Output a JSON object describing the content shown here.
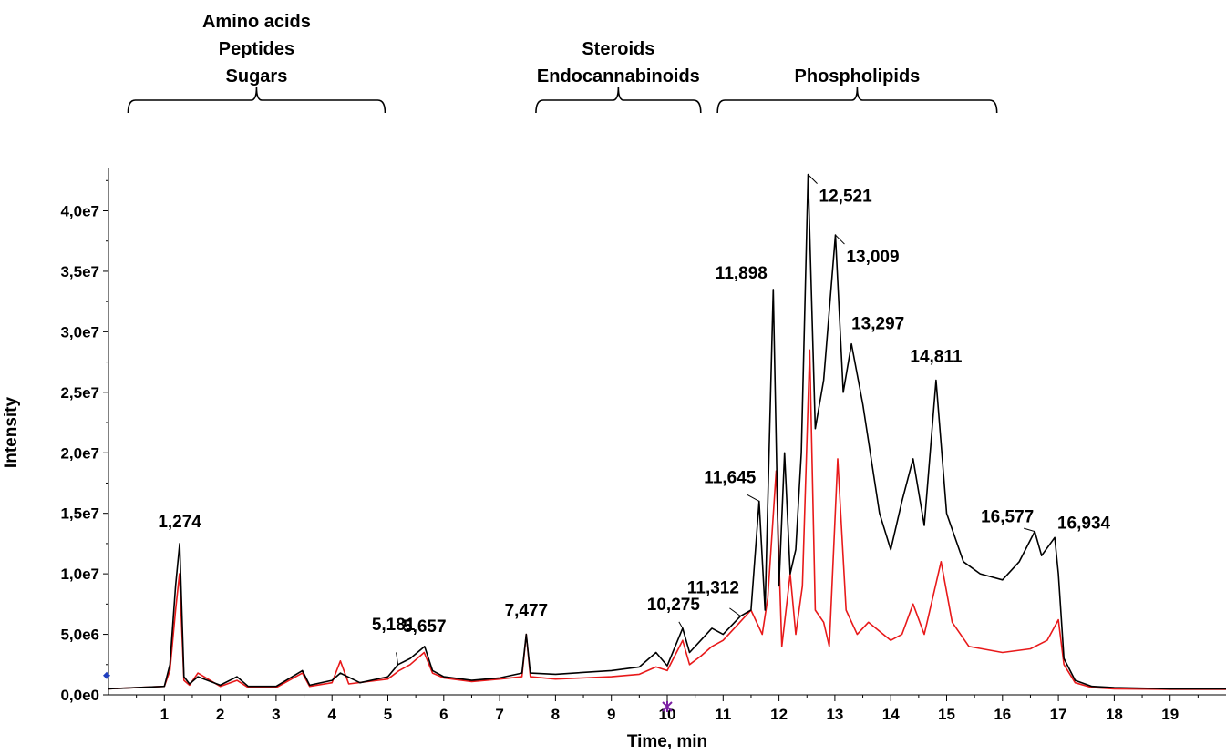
{
  "chart_data": {
    "type": "line",
    "xlabel": "Time, min",
    "ylabel": "Intensity",
    "xlim": [
      0,
      20
    ],
    "ylim": [
      0,
      43500000
    ],
    "x_ticks": [
      1,
      2,
      3,
      4,
      5,
      6,
      7,
      8,
      9,
      10,
      11,
      12,
      13,
      14,
      15,
      16,
      17,
      18,
      19
    ],
    "x_tick_labels": [
      "1",
      "2",
      "3",
      "4",
      "5",
      "6",
      "7",
      "8",
      "9",
      "10",
      "11",
      "12",
      "13",
      "14",
      "15",
      "16",
      "17",
      "18",
      "19"
    ],
    "y_ticks": [
      0,
      5000000,
      10000000,
      15000000,
      20000000,
      25000000,
      30000000,
      35000000,
      40000000
    ],
    "y_tick_labels": [
      "0,0e0",
      "5,0e6",
      "1,0e7",
      "1,5e7",
      "2,0e7",
      "2,5e7",
      "3,0e7",
      "3,5e7",
      "4,0e7"
    ],
    "grid": false,
    "colors": {
      "black_trace": "#000000",
      "red_trace": "#e8191a",
      "left_marker": "#1f3fbf",
      "bottom_marker": "#7a1fa2"
    },
    "series": [
      {
        "color": "#000000",
        "x": [
          0.0,
          1.0,
          1.1,
          1.2,
          1.274,
          1.35,
          1.45,
          1.6,
          2.0,
          2.3,
          2.5,
          3.0,
          3.47,
          3.6,
          4.0,
          4.15,
          4.5,
          5.0,
          5.181,
          5.4,
          5.657,
          5.8,
          6.0,
          6.5,
          7.0,
          7.4,
          7.477,
          7.55,
          8.0,
          9.0,
          9.5,
          9.8,
          10.0,
          10.275,
          10.4,
          10.6,
          10.8,
          11.0,
          11.312,
          11.5,
          11.645,
          11.75,
          11.898,
          12.0,
          12.1,
          12.2,
          12.3,
          12.4,
          12.521,
          12.65,
          12.8,
          13.009,
          13.15,
          13.297,
          13.5,
          13.8,
          14.0,
          14.2,
          14.4,
          14.6,
          14.811,
          15.0,
          15.3,
          15.6,
          16.0,
          16.3,
          16.577,
          16.7,
          16.934,
          17.0,
          17.1,
          17.3,
          17.6,
          18.0,
          19.0,
          20.0
        ],
        "y": [
          500000,
          700000,
          2500000,
          9000000,
          12500000,
          1500000,
          900000,
          1500000,
          800000,
          1500000,
          700000,
          700000,
          2000000,
          800000,
          1200000,
          1800000,
          1000000,
          1500000,
          2500000,
          3000000,
          4000000,
          2000000,
          1500000,
          1200000,
          1400000,
          1800000,
          5000000,
          1800000,
          1700000,
          2000000,
          2300000,
          3500000,
          2400000,
          5500000,
          3500000,
          4500000,
          5500000,
          5000000,
          6500000,
          7000000,
          16000000,
          7000000,
          33500000,
          9000000,
          20000000,
          10000000,
          12000000,
          20000000,
          43000000,
          22000000,
          26000000,
          38000000,
          25000000,
          29000000,
          24000000,
          15000000,
          12000000,
          16000000,
          19500000,
          14000000,
          26000000,
          15000000,
          11000000,
          10000000,
          9500000,
          11000000,
          13500000,
          11500000,
          13000000,
          10000000,
          3000000,
          1200000,
          700000,
          600000,
          500000,
          500000
        ]
      },
      {
        "color": "#e8191a",
        "x": [
          0.0,
          1.0,
          1.1,
          1.2,
          1.27,
          1.35,
          1.45,
          1.6,
          2.0,
          2.3,
          2.5,
          3.0,
          3.47,
          3.6,
          4.0,
          4.15,
          4.3,
          5.0,
          5.2,
          5.4,
          5.65,
          5.8,
          6.0,
          6.5,
          7.0,
          7.4,
          7.477,
          7.55,
          8.0,
          9.0,
          9.5,
          9.8,
          10.0,
          10.275,
          10.4,
          10.6,
          10.8,
          11.0,
          11.3,
          11.5,
          11.7,
          11.8,
          11.95,
          12.05,
          12.2,
          12.3,
          12.42,
          12.55,
          12.65,
          12.8,
          12.9,
          13.05,
          13.2,
          13.4,
          13.6,
          14.0,
          14.2,
          14.4,
          14.6,
          14.9,
          15.1,
          15.4,
          16.0,
          16.5,
          16.8,
          17.0,
          17.1,
          17.3,
          17.6,
          18.0,
          19.0,
          20.0
        ],
        "y": [
          500000,
          700000,
          2000000,
          7000000,
          10000000,
          1200000,
          800000,
          1800000,
          700000,
          1200000,
          600000,
          600000,
          1800000,
          700000,
          1000000,
          2800000,
          900000,
          1300000,
          2000000,
          2500000,
          3500000,
          1800000,
          1400000,
          1100000,
          1300000,
          1500000,
          5000000,
          1500000,
          1300000,
          1500000,
          1700000,
          2300000,
          2000000,
          4500000,
          2500000,
          3200000,
          4000000,
          4500000,
          6000000,
          7000000,
          5000000,
          8000000,
          18500000,
          4000000,
          10000000,
          5000000,
          9000000,
          28500000,
          7000000,
          6000000,
          4000000,
          19500000,
          7000000,
          5000000,
          6000000,
          4500000,
          5000000,
          7500000,
          5000000,
          11000000,
          6000000,
          4000000,
          3500000,
          3800000,
          4500000,
          6200000,
          2500000,
          1000000,
          600000,
          500000,
          450000,
          450000
        ]
      }
    ],
    "peak_labels": [
      {
        "x": 1.274,
        "y": 12500000,
        "text": "1,274"
      },
      {
        "x": 5.181,
        "y": 2500000,
        "text": "5,181"
      },
      {
        "x": 5.657,
        "y": 4000000,
        "text": "5,657"
      },
      {
        "x": 7.477,
        "y": 5000000,
        "text": "7,477"
      },
      {
        "x": 10.275,
        "y": 5500000,
        "text": "10,275"
      },
      {
        "x": 11.312,
        "y": 6500000,
        "text": "11,312"
      },
      {
        "x": 11.645,
        "y": 16000000,
        "text": "11,645"
      },
      {
        "x": 11.898,
        "y": 33500000,
        "text": "11,898"
      },
      {
        "x": 12.521,
        "y": 43000000,
        "text": "12,521"
      },
      {
        "x": 13.009,
        "y": 38000000,
        "text": "13,009"
      },
      {
        "x": 13.297,
        "y": 29000000,
        "text": "13,297"
      },
      {
        "x": 14.811,
        "y": 26000000,
        "text": "14,811"
      },
      {
        "x": 16.577,
        "y": 13500000,
        "text": "16,577"
      },
      {
        "x": 16.934,
        "y": 13000000,
        "text": "16,934"
      }
    ],
    "compound_groups": [
      {
        "lines": [
          "Amino acids",
          "Peptides",
          "Sugars"
        ],
        "x_range": [
          0.35,
          4.95
        ]
      },
      {
        "lines": [
          "Steroids",
          "Endocannabinoids"
        ],
        "x_range": [
          7.65,
          10.6
        ]
      },
      {
        "lines": [
          "Phospholipids"
        ],
        "x_range": [
          10.9,
          15.9
        ]
      }
    ]
  }
}
